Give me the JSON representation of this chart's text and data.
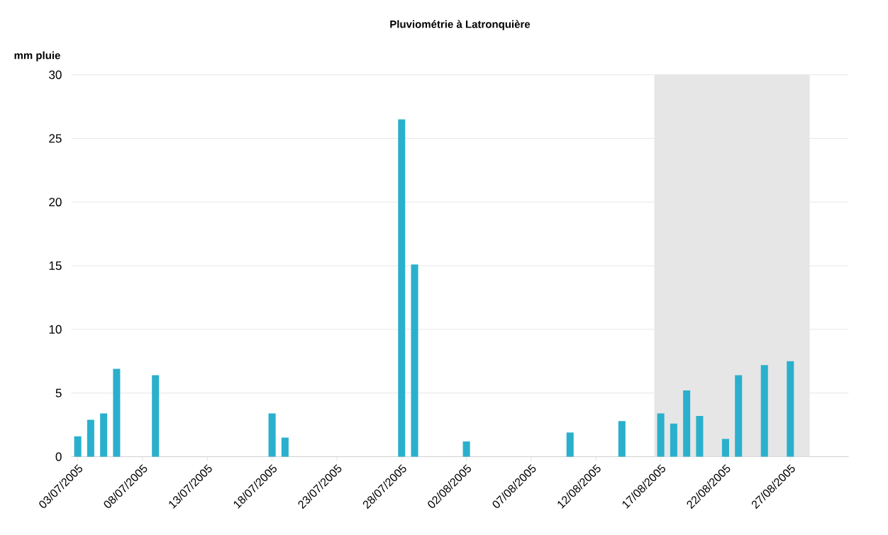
{
  "chart_data": {
    "type": "bar",
    "title": "Pluviométrie à Latronquière",
    "ylabel": "mm pluie",
    "x": [
      "2005-07-03",
      "2005-07-04",
      "2005-07-05",
      "2005-07-06",
      "2005-07-09",
      "2005-07-18",
      "2005-07-19",
      "2005-07-28",
      "2005-07-29",
      "2005-08-02",
      "2005-08-10",
      "2005-08-14",
      "2005-08-17",
      "2005-08-18",
      "2005-08-19",
      "2005-08-20",
      "2005-08-22",
      "2005-08-23",
      "2005-08-25",
      "2005-08-27"
    ],
    "values": [
      1.6,
      2.9,
      3.4,
      6.9,
      6.4,
      3.4,
      1.5,
      26.5,
      15.1,
      1.2,
      1.9,
      2.8,
      3.4,
      2.6,
      5.2,
      3.2,
      1.4,
      6.4,
      7.2,
      7.5
    ],
    "color": "#2ab0cc",
    "xlim": [
      "2005-07-02T12:00",
      "2005-08-31T12:00"
    ],
    "xticks": [
      {
        "value": "2005-07-03",
        "label": "03/07/2005"
      },
      {
        "value": "2005-07-08",
        "label": "08/07/2005"
      },
      {
        "value": "2005-07-13",
        "label": "13/07/2005"
      },
      {
        "value": "2005-07-18",
        "label": "18/07/2005"
      },
      {
        "value": "2005-07-23",
        "label": "23/07/2005"
      },
      {
        "value": "2005-07-28",
        "label": "28/07/2005"
      },
      {
        "value": "2005-08-02",
        "label": "02/08/2005"
      },
      {
        "value": "2005-08-07",
        "label": "07/08/2005"
      },
      {
        "value": "2005-08-12",
        "label": "12/08/2005"
      },
      {
        "value": "2005-08-17",
        "label": "17/08/2005"
      },
      {
        "value": "2005-08-22",
        "label": "22/08/2005"
      },
      {
        "value": "2005-08-27",
        "label": "27/08/2005"
      }
    ],
    "ylim": [
      0,
      30
    ],
    "yticks": [
      0,
      5,
      10,
      15,
      20,
      25,
      30
    ],
    "grid": "y",
    "bands": [
      {
        "axis": "x",
        "from": "2005-08-16T12:00",
        "to": "2005-08-28T12:00",
        "color": "#e6e6e6"
      }
    ]
  }
}
